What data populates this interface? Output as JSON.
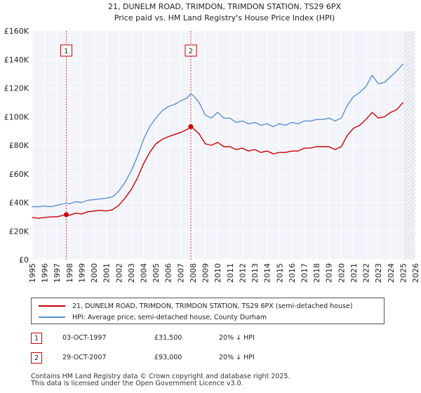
{
  "chart_data": {
    "type": "line",
    "title": "21, DUNELM ROAD, TRIMDON, TRIMDON STATION, TS29 6PX",
    "subtitle": "Price paid vs. HM Land Registry's House Price Index (HPI)",
    "xlim": [
      1995,
      2026
    ],
    "ylim": [
      0,
      160000
    ],
    "x_ticks": [
      1995,
      1996,
      1997,
      1998,
      1999,
      2000,
      2001,
      2002,
      2003,
      2004,
      2005,
      2006,
      2007,
      2008,
      2009,
      2010,
      2011,
      2012,
      2013,
      2014,
      2015,
      2016,
      2017,
      2018,
      2019,
      2020,
      2021,
      2022,
      2023,
      2024,
      2025,
      2026
    ],
    "y_ticks": [
      {
        "value": 0,
        "label": "£0"
      },
      {
        "value": 20000,
        "label": "£20K"
      },
      {
        "value": 40000,
        "label": "£40K"
      },
      {
        "value": 60000,
        "label": "£60K"
      },
      {
        "value": 80000,
        "label": "£80K"
      },
      {
        "value": 100000,
        "label": "£100K"
      },
      {
        "value": 120000,
        "label": "£120K"
      },
      {
        "value": 140000,
        "label": "£140K"
      },
      {
        "value": 160000,
        "label": "£160K"
      }
    ],
    "grid": true,
    "future_hatch_from": 2025.0,
    "series": [
      {
        "name": "21, DUNELM ROAD, TRIMDON, TRIMDON STATION, TS29 6PX (semi-detached house)",
        "color": "#cc0000",
        "x": [
          1995,
          1995.5,
          1996,
          1996.5,
          1997,
          1997.5,
          1997.75,
          1998,
          1998.5,
          1999,
          1999.5,
          2000,
          2000.5,
          2001,
          2001.5,
          2002,
          2002.5,
          2003,
          2003.5,
          2004,
          2004.5,
          2005,
          2005.5,
          2006,
          2006.5,
          2007,
          2007.5,
          2007.83,
          2008,
          2008.5,
          2009,
          2009.5,
          2010,
          2010.5,
          2011,
          2011.5,
          2012,
          2012.5,
          2013,
          2013.5,
          2014,
          2014.5,
          2015,
          2015.5,
          2016,
          2016.5,
          2017,
          2017.5,
          2018,
          2018.5,
          2019,
          2019.5,
          2020,
          2020.5,
          2021,
          2021.5,
          2022,
          2022.5,
          2023,
          2023.5,
          2024,
          2024.5,
          2025.0
        ],
        "y": [
          29500,
          29000,
          29500,
          30000,
          30000,
          31000,
          31500,
          31000,
          32500,
          32000,
          33500,
          34000,
          34500,
          34000,
          35000,
          38000,
          43000,
          49000,
          57000,
          67000,
          75000,
          81000,
          84000,
          86000,
          87500,
          89000,
          91000,
          93000,
          92000,
          88000,
          81000,
          80000,
          82000,
          79000,
          79000,
          77000,
          78000,
          76000,
          77000,
          75000,
          76000,
          74000,
          75000,
          75000,
          76000,
          76000,
          78000,
          78000,
          79000,
          79000,
          79000,
          77000,
          79000,
          87000,
          92000,
          94000,
          98000,
          103000,
          99000,
          100000,
          103000,
          105000,
          110000
        ]
      },
      {
        "name": "HPI: Average price, semi-detached house, County Durham",
        "color": "#5b8fcf",
        "x": [
          1995,
          1995.5,
          1996,
          1996.5,
          1997,
          1997.5,
          1997.75,
          1998,
          1998.5,
          1999,
          1999.5,
          2000,
          2000.5,
          2001,
          2001.5,
          2002,
          2002.5,
          2003,
          2003.5,
          2004,
          2004.5,
          2005,
          2005.5,
          2006,
          2006.5,
          2007,
          2007.5,
          2007.83,
          2008,
          2008.5,
          2009,
          2009.5,
          2010,
          2010.5,
          2011,
          2011.5,
          2012,
          2012.5,
          2013,
          2013.5,
          2014,
          2014.5,
          2015,
          2015.5,
          2016,
          2016.5,
          2017,
          2017.5,
          2018,
          2018.5,
          2019,
          2019.5,
          2020,
          2020.5,
          2021,
          2021.5,
          2022,
          2022.5,
          2023,
          2023.5,
          2024,
          2024.5,
          2025.0
        ],
        "y": [
          37000,
          37000,
          37500,
          37000,
          38000,
          39000,
          39500,
          39000,
          40500,
          40000,
          41500,
          42000,
          42500,
          43000,
          44000,
          48000,
          54000,
          62000,
          72000,
          84000,
          93000,
          99000,
          104000,
          107000,
          108500,
          111000,
          113000,
          116000,
          115000,
          110000,
          101000,
          99000,
          103000,
          99000,
          99000,
          96000,
          97000,
          95000,
          96000,
          94000,
          95000,
          93000,
          95000,
          94000,
          96000,
          95000,
          97000,
          97000,
          98000,
          98000,
          99000,
          97000,
          99000,
          108000,
          114000,
          117000,
          121000,
          129000,
          123000,
          124000,
          128000,
          132000,
          137000
        ]
      }
    ],
    "annotations": [
      {
        "label": "1",
        "x": 1997.75,
        "y": 31500
      },
      {
        "label": "2",
        "x": 2007.83,
        "y": 93000
      }
    ]
  },
  "legend": {
    "property": "21, DUNELM ROAD, TRIMDON, TRIMDON STATION, TS29 6PX (semi-detached house)",
    "hpi": "HPI: Average price, semi-detached house, County Durham",
    "property_color": "#cc0000",
    "hpi_color": "#5b8fcf"
  },
  "sales": [
    {
      "num": "1",
      "date": "03-OCT-1997",
      "price": "£31,500",
      "hpi": "20% ↓ HPI"
    },
    {
      "num": "2",
      "date": "29-OCT-2007",
      "price": "£93,000",
      "hpi": "20% ↓ HPI"
    }
  ],
  "footer": {
    "line1": "Contains HM Land Registry data © Crown copyright and database right 2025.",
    "line2": "This data is licensed under the Open Government Licence v3.0."
  }
}
